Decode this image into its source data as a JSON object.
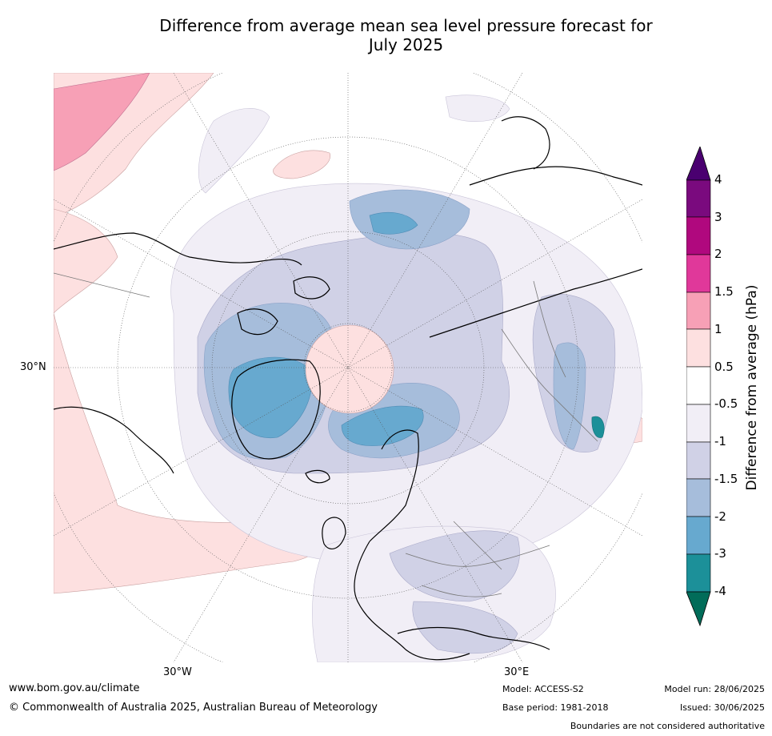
{
  "title_line1": "Difference from average mean sea level pressure forecast for",
  "title_line2": "July 2025",
  "map": {
    "lat_label": "30°N",
    "lon_label_west": "30°W",
    "lon_label_east": "30°E"
  },
  "colorbar": {
    "title": "Difference from average (hPa)",
    "labels": [
      "4",
      "3",
      "2",
      "1.5",
      "1",
      "0.5",
      "-0.5",
      "-1",
      "-1.5",
      "-2",
      "-3",
      "-4"
    ],
    "colors": {
      "above_4": "#4a0070",
      "3_to_4": "#7a0a7e",
      "2_to_3": "#b0087e",
      "1.5_to_2": "#e0389a",
      "1_to_1.5": "#f7a0b6",
      "0.5_to_1": "#fde0e0",
      "neutral": "#ffffff",
      "-1_to_-0.5": "#f1eef6",
      "-1.5_to_-1": "#d0d1e6",
      "-2_to_-1.5": "#a6bddb",
      "-3_to_-2": "#67a9cf",
      "-4_to_-3": "#1c9099",
      "below_-4": "#016c59"
    }
  },
  "footer": {
    "website": "www.bom.gov.au/climate",
    "copyright": "© Commonwealth of Australia 2025, Australian Bureau of Meteorology",
    "model": "Model: ACCESS-S2",
    "base_period": "Base period: 1981-2018",
    "model_run": "Model run: 28/06/2025",
    "issued": "Issued: 30/06/2025",
    "boundaries_note": "Boundaries are not considered authoritative"
  }
}
